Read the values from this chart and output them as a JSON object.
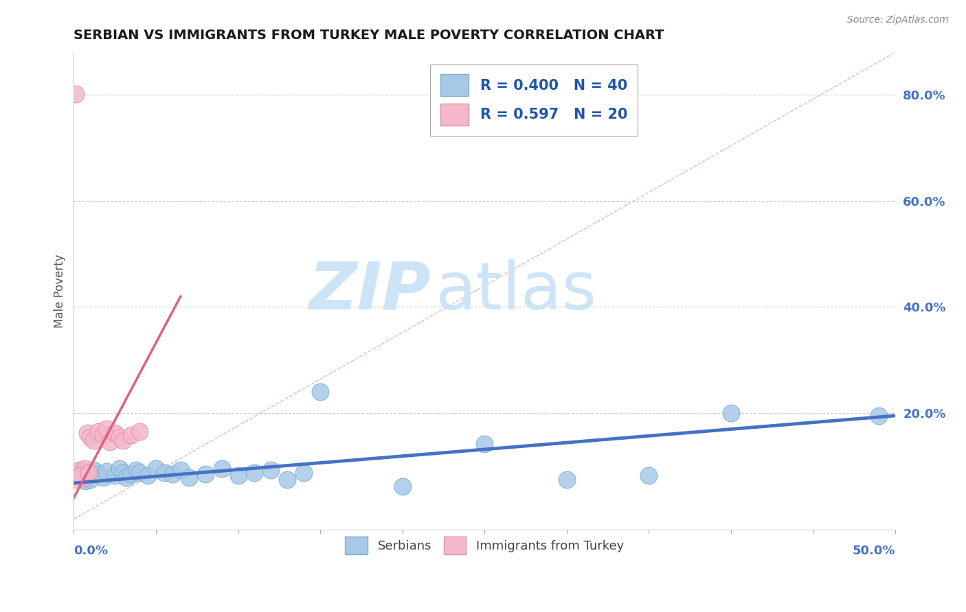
{
  "title": "SERBIAN VS IMMIGRANTS FROM TURKEY MALE POVERTY CORRELATION CHART",
  "source": "Source: ZipAtlas.com",
  "ylabel": "Male Poverty",
  "y_tick_labels": [
    "20.0%",
    "40.0%",
    "60.0%",
    "80.0%"
  ],
  "y_tick_values": [
    0.2,
    0.4,
    0.6,
    0.8
  ],
  "x_range": [
    0.0,
    0.5
  ],
  "y_range": [
    -0.02,
    0.88
  ],
  "legend_r_serbian": "R = 0.400",
  "legend_n_serbian": "N = 40",
  "legend_r_turkey": "R = 0.597",
  "legend_n_turkey": "N = 20",
  "serbian_color": "#a8c8e8",
  "turkey_color": "#f5b8ca",
  "serbian_line_color": "#4472c4",
  "turkey_line_color": "#e06080",
  "diagonal_color": "#d0a0b0",
  "watermark_zip": "ZIP",
  "watermark_atlas": "atlas",
  "watermark_color": "#cce4f5",
  "serbian_dots": [
    [
      0.002,
      0.082
    ],
    [
      0.003,
      0.088
    ],
    [
      0.004,
      0.078
    ],
    [
      0.005,
      0.092
    ],
    [
      0.006,
      0.085
    ],
    [
      0.007,
      0.072
    ],
    [
      0.008,
      0.08
    ],
    [
      0.009,
      0.088
    ],
    [
      0.01,
      0.075
    ],
    [
      0.012,
      0.092
    ],
    [
      0.015,
      0.085
    ],
    [
      0.018,
      0.078
    ],
    [
      0.02,
      0.09
    ],
    [
      0.025,
      0.082
    ],
    [
      0.028,
      0.095
    ],
    [
      0.03,
      0.088
    ],
    [
      0.032,
      0.078
    ],
    [
      0.035,
      0.085
    ],
    [
      0.038,
      0.092
    ],
    [
      0.04,
      0.088
    ],
    [
      0.045,
      0.082
    ],
    [
      0.05,
      0.095
    ],
    [
      0.055,
      0.088
    ],
    [
      0.06,
      0.085
    ],
    [
      0.065,
      0.092
    ],
    [
      0.07,
      0.078
    ],
    [
      0.08,
      0.085
    ],
    [
      0.09,
      0.095
    ],
    [
      0.1,
      0.082
    ],
    [
      0.11,
      0.088
    ],
    [
      0.12,
      0.092
    ],
    [
      0.13,
      0.075
    ],
    [
      0.14,
      0.088
    ],
    [
      0.15,
      0.24
    ],
    [
      0.2,
      0.062
    ],
    [
      0.25,
      0.142
    ],
    [
      0.3,
      0.075
    ],
    [
      0.35,
      0.082
    ],
    [
      0.4,
      0.2
    ],
    [
      0.49,
      0.195
    ]
  ],
  "turkey_dots": [
    [
      0.001,
      0.802
    ],
    [
      0.003,
      0.092
    ],
    [
      0.005,
      0.085
    ],
    [
      0.006,
      0.078
    ],
    [
      0.007,
      0.095
    ],
    [
      0.008,
      0.162
    ],
    [
      0.01,
      0.155
    ],
    [
      0.012,
      0.148
    ],
    [
      0.015,
      0.165
    ],
    [
      0.018,
      0.158
    ],
    [
      0.02,
      0.17
    ],
    [
      0.022,
      0.145
    ],
    [
      0.025,
      0.162
    ],
    [
      0.028,
      0.155
    ],
    [
      0.03,
      0.148
    ],
    [
      0.035,
      0.158
    ],
    [
      0.04,
      0.165
    ],
    [
      0.002,
      0.075
    ],
    [
      0.004,
      0.082
    ],
    [
      0.009,
      0.088
    ]
  ],
  "blue_line_x": [
    0.0,
    0.5
  ],
  "blue_line_y": [
    0.068,
    0.195
  ],
  "pink_line_x": [
    0.0,
    0.065
  ],
  "pink_line_y": [
    0.04,
    0.42
  ],
  "diagonal_line_x": [
    0.0,
    0.5
  ],
  "diagonal_line_y": [
    0.0,
    0.88
  ]
}
